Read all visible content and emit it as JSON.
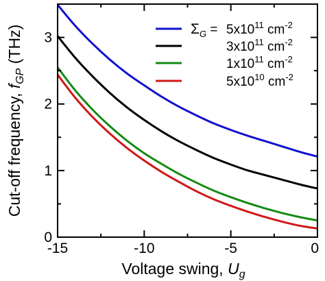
{
  "chart_data": {
    "type": "line",
    "xlabel": "Voltage swing, ",
    "xlabel_var": "U",
    "xlabel_sub": "g",
    "ylabel": "Cut-off frequency, ",
    "ylabel_var": "f",
    "ylabel_sub": "GP",
    "ylabel_unit": " (THz)",
    "xlim": [
      -15,
      0
    ],
    "ylim": [
      0,
      3.5
    ],
    "x_ticks": [
      -15,
      -10,
      -5,
      0
    ],
    "x_tick_labels": [
      "-15",
      "-10",
      "-5",
      "0"
    ],
    "y_ticks": [
      0,
      1,
      2,
      3
    ],
    "y_tick_labels": [
      "0",
      "1",
      "2",
      "3"
    ],
    "grid": false,
    "legend_position": "top-right",
    "legend_symbol": "Σ",
    "legend_symbol_sub": "G",
    "legend_equals": " = ",
    "x": [
      -15,
      -14,
      -13,
      -12,
      -11,
      -10,
      -9,
      -8,
      -7,
      -6,
      -5,
      -4,
      -3,
      -2,
      -1,
      0
    ],
    "series": [
      {
        "name_mantissa": "5x10",
        "name_exp": "11",
        "name_unit": " cm",
        "name_unit_exp": "-2",
        "color": "#1010d0",
        "values": [
          3.49,
          3.18,
          2.91,
          2.67,
          2.46,
          2.28,
          2.11,
          1.96,
          1.83,
          1.71,
          1.61,
          1.52,
          1.44,
          1.36,
          1.28,
          1.21
        ]
      },
      {
        "name_mantissa": "3x10",
        "name_exp": "11",
        "name_unit": " cm",
        "name_unit_exp": "-2",
        "color": "#000000",
        "values": [
          3.02,
          2.7,
          2.42,
          2.17,
          1.95,
          1.76,
          1.59,
          1.44,
          1.31,
          1.19,
          1.09,
          1.0,
          0.93,
          0.86,
          0.79,
          0.73
        ]
      },
      {
        "name_mantissa": "1x10",
        "name_exp": "11",
        "name_unit": " cm",
        "name_unit_exp": "-2",
        "color": "#148a14",
        "values": [
          2.55,
          2.21,
          1.92,
          1.67,
          1.45,
          1.26,
          1.1,
          0.95,
          0.82,
          0.7,
          0.6,
          0.51,
          0.43,
          0.36,
          0.3,
          0.25
        ]
      },
      {
        "name_mantissa": "5x10",
        "name_exp": "10",
        "name_unit": " cm",
        "name_unit_exp": "-2",
        "color": "#d01818",
        "values": [
          2.44,
          2.1,
          1.81,
          1.56,
          1.34,
          1.15,
          0.98,
          0.83,
          0.69,
          0.57,
          0.47,
          0.38,
          0.3,
          0.23,
          0.17,
          0.13
        ]
      }
    ]
  }
}
